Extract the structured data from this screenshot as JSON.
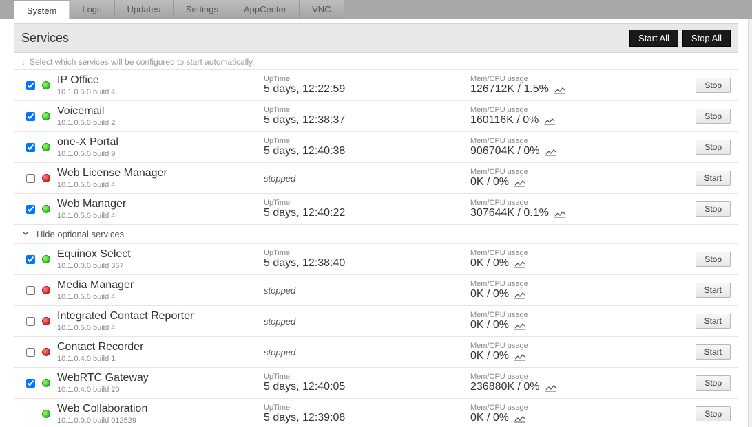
{
  "tabs": [
    "System",
    "Logs",
    "Updates",
    "Settings",
    "AppCenter",
    "VNC"
  ],
  "activeTab": 0,
  "pageTitle": "Services",
  "buttons": {
    "startAll": "Start All",
    "stopAll": "Stop All"
  },
  "hint": "Select which services will be configured to start automatically.",
  "labels": {
    "uptime": "UpTime",
    "usage": "Mem/CPU usage",
    "stopped": "stopped"
  },
  "toggle": {
    "label": "Hide optional services"
  },
  "colors": {
    "greenDot": "#2bbf29",
    "redDot": "#d42222",
    "tabbarBg": "#a8a8a8",
    "headerBg": "#e8e8e8",
    "btnDarkBg": "#1a1a1a",
    "border": "#e5e5e5"
  },
  "servicesTop": [
    {
      "name": "IP Office",
      "build": "10.1.0.5.0 build 4",
      "checked": true,
      "status": "green",
      "uptime": "5 days, 12:22:59",
      "usage": "126712K / 1.5%",
      "action": "Stop"
    },
    {
      "name": "Voicemail",
      "build": "10.1.0.5.0 build 2",
      "checked": true,
      "status": "green",
      "uptime": "5 days, 12:38:37",
      "usage": "160116K / 0%",
      "action": "Stop"
    },
    {
      "name": "one-X Portal",
      "build": "10.1.0.5.0 build 9",
      "checked": true,
      "status": "green",
      "uptime": "5 days, 12:40:38",
      "usage": "906704K / 0%",
      "action": "Stop"
    },
    {
      "name": "Web License Manager",
      "build": "10.1.0.5.0 build 4",
      "checked": false,
      "status": "red",
      "uptime": null,
      "usage": "0K / 0%",
      "action": "Start"
    },
    {
      "name": "Web Manager",
      "build": "10.1.0.5.0 build 4",
      "checked": true,
      "status": "green",
      "uptime": "5 days, 12:40:22",
      "usage": "307644K / 0.1%",
      "action": "Stop"
    }
  ],
  "servicesOptional": [
    {
      "name": "Equinox Select",
      "build": "10.1.0.0.0 build 357",
      "checked": true,
      "status": "green",
      "uptime": "5 days, 12:38:40",
      "usage": "0K / 0%",
      "action": "Stop"
    },
    {
      "name": "Media Manager",
      "build": "10.1.0.5.0 build 4",
      "checked": false,
      "status": "red",
      "uptime": null,
      "usage": "0K / 0%",
      "action": "Start"
    },
    {
      "name": "Integrated Contact Reporter",
      "build": "10.1.0.5.0 build 4",
      "checked": false,
      "status": "red",
      "uptime": null,
      "usage": "0K / 0%",
      "action": "Start"
    },
    {
      "name": "Contact Recorder",
      "build": "10.1.0.4.0 build 1",
      "checked": false,
      "status": "red",
      "uptime": null,
      "usage": "0K / 0%",
      "action": "Start"
    },
    {
      "name": "WebRTC Gateway",
      "build": "10.1.0.4.0 build 20",
      "checked": true,
      "status": "green",
      "uptime": "5 days, 12:40:05",
      "usage": "236880K / 0%",
      "action": "Stop"
    },
    {
      "name": "Web Collaboration",
      "build": "10.1.0.0.0 build 012529",
      "checked": null,
      "status": "green",
      "uptime": "5 days, 12:39:08",
      "usage": "0K / 0%",
      "action": "Stop"
    }
  ]
}
